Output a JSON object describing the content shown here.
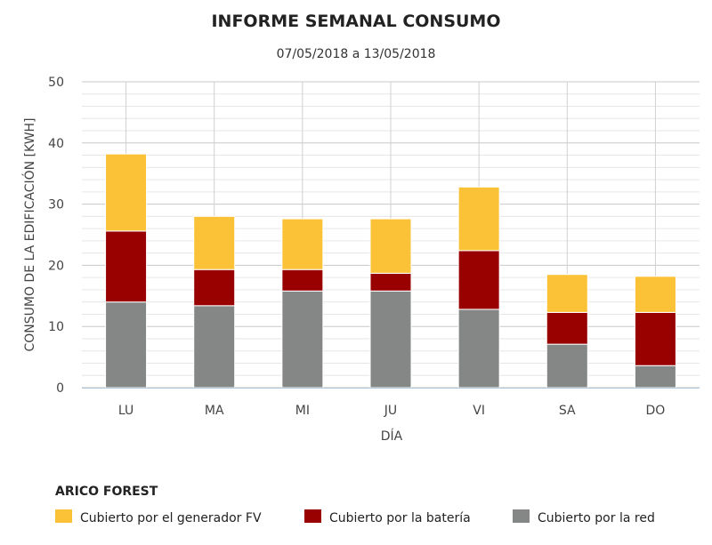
{
  "chart_data": {
    "type": "bar",
    "stacked": true,
    "title": "INFORME SEMANAL CONSUMO",
    "subtitle": "07/05/2018 a 13/05/2018",
    "xlabel": "DÍA",
    "ylabel": "CONSUMO DE LA EDIFICACIÓN [KWH]",
    "ylim": [
      0,
      50
    ],
    "yticks": [
      0,
      10,
      20,
      30,
      40,
      50
    ],
    "grid": true,
    "categories": [
      "LU",
      "MA",
      "MI",
      "JU",
      "VI",
      "SA",
      "DO"
    ],
    "legend_title": "ARICO FOREST",
    "legend_position": "bottom-left",
    "series": [
      {
        "name": "Cubierto por la red",
        "color": "#858787",
        "values": [
          14.0,
          13.4,
          15.8,
          15.8,
          12.8,
          7.1,
          3.6
        ]
      },
      {
        "name": "Cubierto por la batería",
        "color": "#990000",
        "values": [
          11.6,
          5.9,
          3.5,
          2.9,
          9.6,
          5.2,
          8.7
        ]
      },
      {
        "name": "Cubierto por el generador FV",
        "color": "#fbc238",
        "values": [
          12.6,
          8.7,
          8.3,
          8.9,
          10.4,
          6.2,
          5.9
        ]
      }
    ],
    "legend_order": [
      2,
      1,
      0
    ]
  }
}
